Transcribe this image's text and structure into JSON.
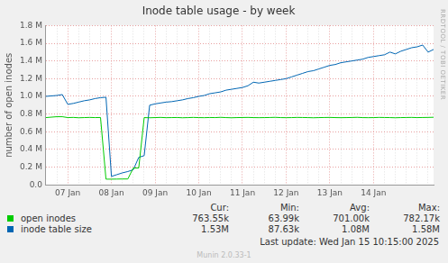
{
  "chart_data": {
    "type": "line",
    "title": "Inode table usage - by week",
    "y_label": "number of open inodes",
    "categories": [
      null,
      null,
      null,
      null,
      "07 Jan",
      null,
      null,
      null,
      null,
      null,
      null,
      null,
      "08 Jan",
      null,
      null,
      null,
      null,
      null,
      null,
      null,
      "09 Jan",
      null,
      null,
      null,
      null,
      null,
      null,
      null,
      "10 Jan",
      null,
      null,
      null,
      null,
      null,
      null,
      null,
      "11 Jan",
      null,
      null,
      null,
      null,
      null,
      null,
      null,
      "12 Jan",
      null,
      null,
      null,
      null,
      null,
      null,
      null,
      "13 Jan",
      null,
      null,
      null,
      null,
      null,
      null,
      null,
      "14 Jan",
      null,
      null,
      null,
      null,
      null,
      null,
      null,
      null,
      null,
      null,
      null
    ],
    "series": [
      {
        "name": "open inodes",
        "color": "#00cc00",
        "stats": [
          "763.55k",
          "63.99k",
          "701.00k",
          "782.17k"
        ],
        "values": [
          760000,
          765000,
          770000,
          770000,
          760000,
          762000,
          758000,
          760000,
          762000,
          760000,
          761000,
          64000,
          64000,
          65000,
          66000,
          66000,
          190000,
          190000,
          760000,
          758000,
          760000,
          762000,
          759000,
          760000,
          761000,
          758000,
          760000,
          762000,
          760000,
          759000,
          761000,
          760000,
          763000,
          760000,
          758000,
          760000,
          761000,
          762000,
          760000,
          759000,
          760000,
          761000,
          763000,
          760000,
          759000,
          760000,
          762000,
          761000,
          760000,
          758000,
          760000,
          761000,
          762000,
          760000,
          759000,
          760000,
          761000,
          763000,
          760000,
          759000,
          760000,
          762000,
          761000,
          760000,
          758000,
          760000,
          761000,
          762000,
          760000,
          761000,
          762000,
          763550
        ]
      },
      {
        "name": "inode table size",
        "color": "#0066b3",
        "stats": [
          "1.53M",
          "87.63k",
          "1.08M",
          "1.58M"
        ],
        "values": [
          1000000,
          1005000,
          1010000,
          1020000,
          910000,
          920000,
          935000,
          950000,
          960000,
          975000,
          985000,
          990000,
          95000,
          115000,
          135000,
          150000,
          170000,
          310000,
          330000,
          900000,
          915000,
          925000,
          935000,
          940000,
          950000,
          960000,
          975000,
          985000,
          1000000,
          1010000,
          1030000,
          1040000,
          1050000,
          1070000,
          1080000,
          1090000,
          1100000,
          1120000,
          1160000,
          1150000,
          1160000,
          1170000,
          1180000,
          1190000,
          1200000,
          1220000,
          1240000,
          1260000,
          1280000,
          1290000,
          1310000,
          1330000,
          1350000,
          1360000,
          1380000,
          1390000,
          1400000,
          1410000,
          1420000,
          1440000,
          1450000,
          1460000,
          1470000,
          1500000,
          1480000,
          1510000,
          1530000,
          1550000,
          1560000,
          1580000,
          1500000,
          1530000
        ]
      }
    ],
    "stats_headers": [
      "Cur:",
      "Min:",
      "Avg:",
      "Max:"
    ],
    "ylim": [
      0,
      1800000
    ],
    "yticks": [
      {
        "value": 0,
        "label": "0.0"
      },
      {
        "value": 200000,
        "label": "0.2 M"
      },
      {
        "value": 400000,
        "label": "0.4 M"
      },
      {
        "value": 600000,
        "label": "0.6 M"
      },
      {
        "value": 800000,
        "label": "0.8 M"
      },
      {
        "value": 1000000,
        "label": "1.0 M"
      },
      {
        "value": 1200000,
        "label": "1.2 M"
      },
      {
        "value": 1400000,
        "label": "1.4 M"
      },
      {
        "value": 1600000,
        "label": "1.6 M"
      },
      {
        "value": 1800000,
        "label": "1.8 M"
      }
    ],
    "grid": true,
    "legend": "bottom",
    "footer": "Last update: Wed Jan 15 10:15:00 2025",
    "credit": "Munin 2.0.33-1",
    "watermark": "RRDTOOL / TOBI OETIKER"
  }
}
